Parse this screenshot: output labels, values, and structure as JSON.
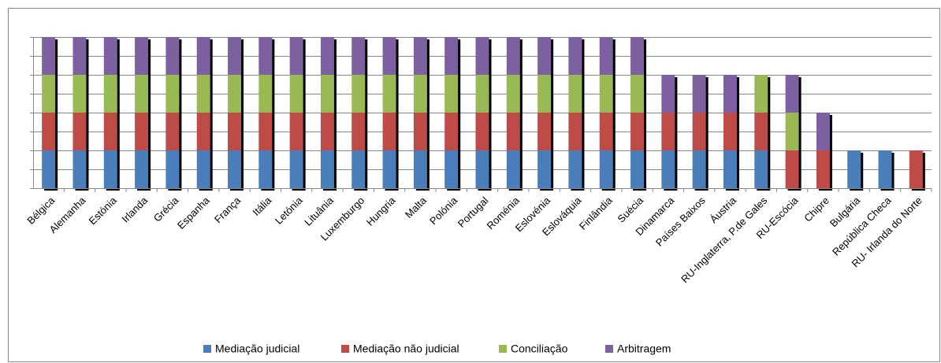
{
  "chart_data": {
    "type": "stacked_bar",
    "categories": [
      "Bélgica",
      "Alemanha",
      "Estónia",
      "Irlanda",
      "Grécia",
      "Espanha",
      "França",
      "Itália",
      "Letónia",
      "Lituânia",
      "Luxemburgo",
      "Hungria",
      "Malta",
      "Polónia",
      "Portugal",
      "Roménia",
      "Eslovénia",
      "Eslováquia",
      "Finlândia",
      "Suécia",
      "Dinamarca",
      "Países Baixos",
      "Áustria",
      "RU-Inglaterra, P.de Gales",
      "RU-Escócia",
      "Chipre",
      "Bulgária",
      "República Checa",
      "RU- Irlanda do Norte"
    ],
    "series": [
      {
        "name": "Mediação judicial",
        "color": "#4a7ebb",
        "values": [
          1,
          1,
          1,
          1,
          1,
          1,
          1,
          1,
          1,
          1,
          1,
          1,
          1,
          1,
          1,
          1,
          1,
          1,
          1,
          1,
          1,
          1,
          1,
          1,
          0,
          0,
          1,
          1,
          0
        ]
      },
      {
        "name": "Mediação não judicial",
        "color": "#be4b48",
        "values": [
          1,
          1,
          1,
          1,
          1,
          1,
          1,
          1,
          1,
          1,
          1,
          1,
          1,
          1,
          1,
          1,
          1,
          1,
          1,
          1,
          1,
          1,
          1,
          1,
          1,
          1,
          0,
          0,
          1
        ]
      },
      {
        "name": "Conciliação",
        "color": "#98b954",
        "values": [
          1,
          1,
          1,
          1,
          1,
          1,
          1,
          1,
          1,
          1,
          1,
          1,
          1,
          1,
          1,
          1,
          1,
          1,
          1,
          1,
          0,
          0,
          0,
          1,
          1,
          0,
          0,
          0,
          0
        ]
      },
      {
        "name": "Arbitragem",
        "color": "#7d60a0",
        "values": [
          1,
          1,
          1,
          1,
          1,
          1,
          1,
          1,
          1,
          1,
          1,
          1,
          1,
          1,
          1,
          1,
          1,
          1,
          1,
          1,
          1,
          1,
          1,
          0,
          1,
          1,
          0,
          0,
          0
        ]
      }
    ],
    "ylim": [
      0,
      4
    ],
    "yticks": [
      0,
      0.5,
      1,
      1.5,
      2,
      2.5,
      3,
      3.5,
      4
    ],
    "grid": true,
    "legend": "bottom"
  }
}
